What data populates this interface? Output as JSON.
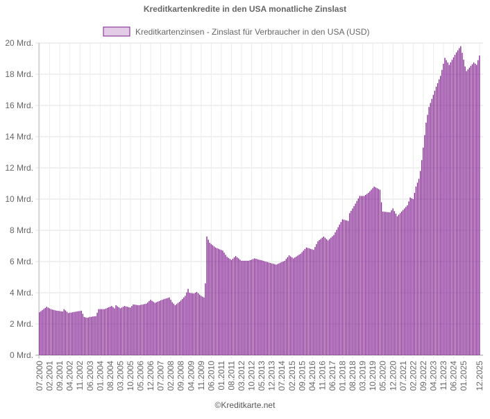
{
  "chart_data": {
    "type": "bar",
    "title": "Kreditkartenkredite in den USA monatliche Zinslast",
    "legend_position": "top",
    "series": [
      {
        "name": "Kreditkartenzinsen - Zinslast für Verbraucher in den USA (USD)",
        "color": "#7e1a8e",
        "legend_fill": "#e2cce6",
        "values": [
          2.75,
          2.82,
          2.89,
          2.96,
          3.03,
          3.1,
          3.05,
          3.0,
          2.95,
          2.92,
          2.9,
          2.87,
          2.85,
          2.84,
          2.83,
          2.81,
          2.8,
          2.95,
          2.87,
          2.78,
          2.7,
          2.72,
          2.73,
          2.75,
          2.77,
          2.78,
          2.8,
          2.82,
          2.83,
          2.85,
          2.65,
          2.45,
          2.42,
          2.4,
          2.42,
          2.45,
          2.46,
          2.48,
          2.49,
          2.5,
          2.72,
          2.95,
          2.95,
          2.95,
          2.95,
          2.95,
          2.99,
          3.03,
          3.07,
          3.11,
          3.15,
          3.08,
          3.0,
          3.2,
          3.13,
          3.07,
          3.0,
          3.05,
          3.1,
          3.15,
          3.12,
          3.1,
          3.07,
          3.05,
          3.15,
          3.25,
          3.24,
          3.22,
          3.21,
          3.2,
          3.22,
          3.24,
          3.26,
          3.28,
          3.3,
          3.38,
          3.47,
          3.55,
          3.48,
          3.42,
          3.35,
          3.39,
          3.43,
          3.47,
          3.51,
          3.55,
          3.58,
          3.61,
          3.64,
          3.67,
          3.7,
          3.55,
          3.4,
          3.3,
          3.2,
          3.27,
          3.35,
          3.42,
          3.5,
          3.6,
          3.7,
          3.8,
          4.02,
          4.25,
          4.0,
          3.98,
          3.97,
          3.95,
          4.0,
          4.05,
          3.97,
          3.88,
          3.8,
          3.75,
          3.7,
          4.6,
          7.6,
          7.4,
          7.2,
          7.12,
          7.05,
          6.97,
          6.9,
          6.86,
          6.82,
          6.78,
          6.74,
          6.7,
          6.57,
          6.43,
          6.3,
          6.23,
          6.17,
          6.1,
          6.18,
          6.27,
          6.35,
          6.27,
          6.2,
          6.12,
          6.05,
          6.05,
          6.05,
          6.05,
          6.05,
          6.05,
          6.09,
          6.12,
          6.16,
          6.2,
          6.18,
          6.15,
          6.12,
          6.1,
          6.08,
          6.05,
          6.02,
          5.99,
          5.97,
          5.94,
          5.91,
          5.88,
          5.86,
          5.83,
          5.8,
          5.84,
          5.88,
          5.93,
          5.97,
          6.01,
          6.05,
          6.17,
          6.28,
          6.4,
          6.33,
          6.27,
          6.2,
          6.26,
          6.32,
          6.38,
          6.44,
          6.5,
          6.6,
          6.7,
          6.8,
          6.9,
          6.87,
          6.84,
          6.81,
          6.78,
          6.75,
          6.93,
          7.12,
          7.3,
          7.38,
          7.45,
          7.53,
          7.6,
          7.52,
          7.43,
          7.35,
          7.44,
          7.53,
          7.61,
          7.7,
          7.87,
          8.03,
          8.2,
          8.37,
          8.53,
          8.7,
          8.68,
          8.65,
          8.63,
          8.6,
          9.1,
          9.25,
          9.4,
          9.55,
          9.71,
          9.88,
          10.04,
          10.2,
          10.2,
          10.2,
          10.2,
          10.27,
          10.33,
          10.4,
          10.5,
          10.6,
          10.7,
          10.8,
          10.75,
          10.7,
          10.65,
          10.6,
          9.8,
          9.2,
          9.19,
          9.18,
          9.17,
          9.16,
          9.15,
          9.28,
          9.4,
          9.23,
          9.07,
          8.9,
          9.0,
          9.1,
          9.2,
          9.3,
          9.4,
          9.5,
          9.6,
          9.85,
          10.1,
          10.05,
          10.0,
          10.4,
          10.8,
          11.05,
          11.3,
          11.8,
          12.5,
          13.3,
          14.1,
          14.9,
          15.4,
          15.9,
          16.16,
          16.42,
          16.68,
          16.94,
          17.2,
          17.43,
          17.67,
          17.9,
          18.28,
          18.67,
          19.05,
          18.9,
          18.75,
          18.6,
          18.76,
          18.92,
          19.08,
          19.24,
          19.4,
          19.53,
          19.67,
          19.8,
          19.37,
          18.93,
          18.5,
          18.2,
          18.31,
          18.42,
          18.53,
          18.64,
          18.75,
          18.68,
          18.6,
          18.9,
          19.2
        ]
      }
    ],
    "x_range": [
      "07.2000",
      "12.2025"
    ],
    "x_tick_labels": [
      "07.2000",
      "02.2001",
      "09.2001",
      "04.2002",
      "11.2002",
      "06.2003",
      "01.2004",
      "08.2004",
      "03.2005",
      "10.2005",
      "05.2006",
      "12.2006",
      "07.2007",
      "02.2008",
      "09.2008",
      "04.2009",
      "11.2009",
      "06.2010",
      "01.2011",
      "08.2011",
      "03.2012",
      "10.2012",
      "05.2013",
      "12.2013",
      "07.2014",
      "02.2015",
      "09.2015",
      "04.2016",
      "11.2016",
      "06.2017",
      "01.2018",
      "08.2018",
      "03.2019",
      "10.2019",
      "05.2020",
      "12.2020",
      "07.2021",
      "02.2022",
      "09.2022",
      "04.2023",
      "11.2023",
      "06.2024",
      "01.2025",
      "12.2025"
    ],
    "y_tick_labels": [
      "0 Mrd.",
      "2 Mrd.",
      "4 Mrd.",
      "6 Mrd.",
      "8 Mrd.",
      "10 Mrd.",
      "12 Mrd.",
      "14 Mrd.",
      "16 Mrd.",
      "18 Mrd.",
      "20 Mrd."
    ],
    "ylim": [
      0,
      20
    ],
    "y_unit": "Mrd.",
    "grid": true
  },
  "footer": {
    "credit": "©Kreditkarte.net"
  }
}
